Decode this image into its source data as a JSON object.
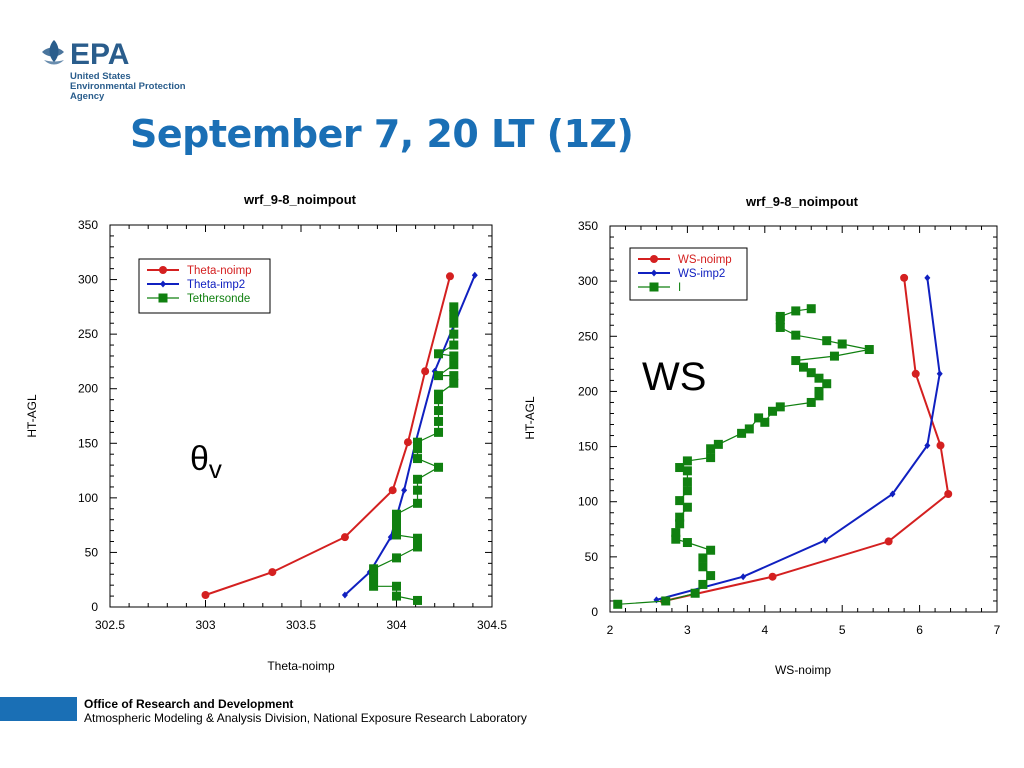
{
  "header": {
    "logo": {
      "letters": "EPA",
      "line1": "United States",
      "line2": "Environmental Protection",
      "line3": "Agency"
    },
    "title": "September 7, 20 LT (1Z)"
  },
  "footer": {
    "org": "Office of Research and Development",
    "division": "Atmospheric Modeling & Analysis Division, National Exposure Research Laboratory"
  },
  "colors": {
    "title": "#1a6fb5",
    "red": "#d42020",
    "blue": "#1020c0",
    "green": "#108010"
  },
  "chart_data": [
    {
      "type": "line",
      "title": "wrf_9-8_noimpout",
      "xlabel": "Theta-noimp",
      "ylabel": "HT-AGL",
      "annotation": "θv",
      "xlim": [
        302.5,
        304.5
      ],
      "ylim": [
        0,
        350
      ],
      "xticks": [
        "302.5",
        "303",
        "303.5",
        "304",
        "304.5"
      ],
      "yticks": [
        "0",
        "50",
        "100",
        "150",
        "200",
        "250",
        "300",
        "350"
      ],
      "legend_position": "top-left",
      "series": [
        {
          "name": "Theta-noimp",
          "color": "#d42020",
          "marker": "circle",
          "points": [
            [
              303.0,
              11
            ],
            [
              303.35,
              32
            ],
            [
              303.73,
              64
            ],
            [
              303.98,
              107
            ],
            [
              304.06,
              151
            ],
            [
              304.15,
              216
            ],
            [
              304.28,
              303
            ]
          ]
        },
        {
          "name": "Theta-imp2",
          "color": "#1020c0",
          "marker": "diamond",
          "points": [
            [
              303.73,
              11
            ],
            [
              303.86,
              32
            ],
            [
              303.97,
              64
            ],
            [
              304.04,
              107
            ],
            [
              304.1,
              151
            ],
            [
              304.2,
              216
            ],
            [
              304.41,
              304
            ]
          ]
        },
        {
          "name": "Tethersonde",
          "color": "#108010",
          "marker": "square",
          "points": [
            [
              304.11,
              6
            ],
            [
              304.0,
              10
            ],
            [
              304.0,
              19
            ],
            [
              303.88,
              19
            ],
            [
              303.88,
              27
            ],
            [
              303.88,
              35
            ],
            [
              304.0,
              45
            ],
            [
              304.11,
              55
            ],
            [
              304.11,
              63
            ],
            [
              304.0,
              66
            ],
            [
              304.0,
              72
            ],
            [
              304.0,
              80
            ],
            [
              304.0,
              85
            ],
            [
              304.11,
              95
            ],
            [
              304.11,
              107
            ],
            [
              304.11,
              117
            ],
            [
              304.22,
              128
            ],
            [
              304.11,
              136
            ],
            [
              304.11,
              145
            ],
            [
              304.11,
              151
            ],
            [
              304.22,
              160
            ],
            [
              304.22,
              170
            ],
            [
              304.22,
              180
            ],
            [
              304.22,
              190
            ],
            [
              304.22,
              195
            ],
            [
              304.3,
              205
            ],
            [
              304.3,
              212
            ],
            [
              304.22,
              212
            ],
            [
              304.3,
              222
            ],
            [
              304.3,
              230
            ],
            [
              304.22,
              232
            ],
            [
              304.3,
              240
            ],
            [
              304.3,
              250
            ],
            [
              304.3,
              260
            ],
            [
              304.3,
              268
            ],
            [
              304.3,
              275
            ]
          ]
        }
      ]
    },
    {
      "type": "line",
      "title": "wrf_9-8_noimpout",
      "xlabel": "WS-noimp",
      "ylabel": "HT-AGL",
      "annotation": "WS",
      "xlim": [
        2,
        7
      ],
      "ylim": [
        0,
        350
      ],
      "xticks": [
        "2",
        "3",
        "4",
        "5",
        "6",
        "7"
      ],
      "yticks": [
        "0",
        "50",
        "100",
        "150",
        "200",
        "250",
        "300",
        "350"
      ],
      "legend_position": "top-left",
      "series": [
        {
          "name": "WS-noimp",
          "color": "#d42020",
          "marker": "circle",
          "points": [
            [
              2.7,
              10
            ],
            [
              4.1,
              32
            ],
            [
              5.6,
              64
            ],
            [
              6.37,
              107
            ],
            [
              6.27,
              151
            ],
            [
              5.95,
              216
            ],
            [
              5.8,
              303
            ]
          ]
        },
        {
          "name": "WS-imp2",
          "color": "#1020c0",
          "marker": "diamond",
          "points": [
            [
              2.6,
              11
            ],
            [
              3.72,
              32
            ],
            [
              4.78,
              65
            ],
            [
              5.65,
              107
            ],
            [
              6.1,
              151
            ],
            [
              6.26,
              216
            ],
            [
              6.1,
              303
            ]
          ]
        },
        {
          "name": "I",
          "color": "#108010",
          "marker": "square",
          "points": [
            [
              2.1,
              7
            ],
            [
              2.72,
              10
            ],
            [
              3.1,
              17
            ],
            [
              3.2,
              25
            ],
            [
              3.3,
              33
            ],
            [
              3.2,
              41
            ],
            [
              3.2,
              49
            ],
            [
              3.3,
              56
            ],
            [
              3.0,
              63
            ],
            [
              2.85,
              66
            ],
            [
              2.85,
              72
            ],
            [
              2.9,
              80
            ],
            [
              2.9,
              86
            ],
            [
              3.0,
              95
            ],
            [
              2.9,
              101
            ],
            [
              3.0,
              110
            ],
            [
              3.0,
              118
            ],
            [
              3.0,
              128
            ],
            [
              2.9,
              131
            ],
            [
              3.0,
              137
            ],
            [
              3.3,
              140
            ],
            [
              3.3,
              148
            ],
            [
              3.4,
              152
            ],
            [
              3.7,
              162
            ],
            [
              3.8,
              166
            ],
            [
              3.92,
              176
            ],
            [
              4.0,
              172
            ],
            [
              4.1,
              182
            ],
            [
              4.2,
              186
            ],
            [
              4.6,
              190
            ],
            [
              4.7,
              196
            ],
            [
              4.7,
              200
            ],
            [
              4.8,
              207
            ],
            [
              4.7,
              212
            ],
            [
              4.6,
              217
            ],
            [
              4.5,
              222
            ],
            [
              4.4,
              228
            ],
            [
              4.9,
              232
            ],
            [
              5.35,
              238
            ],
            [
              5.0,
              243
            ],
            [
              4.8,
              246
            ],
            [
              4.4,
              251
            ],
            [
              4.2,
              258
            ],
            [
              4.2,
              265
            ],
            [
              4.2,
              268
            ],
            [
              4.4,
              273
            ],
            [
              4.6,
              275
            ]
          ]
        }
      ]
    }
  ]
}
